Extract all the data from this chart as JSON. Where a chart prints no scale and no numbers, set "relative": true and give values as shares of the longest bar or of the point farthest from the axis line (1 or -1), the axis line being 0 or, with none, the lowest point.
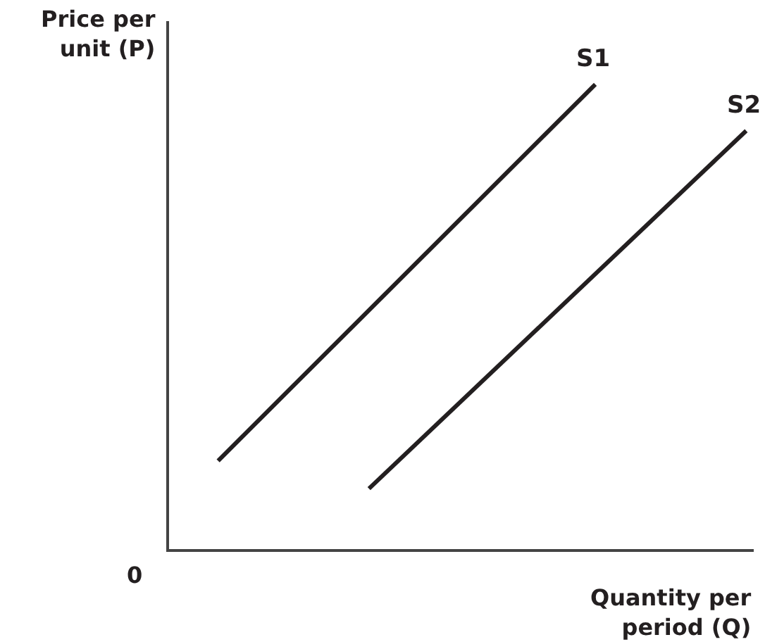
{
  "chart_data": {
    "type": "line",
    "relative": true,
    "xlabel": "Quantity per\nperiod (Q)",
    "ylabel": "Price per\nunit (P)",
    "annotations": [
      "0"
    ],
    "legend": false,
    "marker": "none",
    "line_style": "solid",
    "categories": [
      null,
      null,
      null,
      null,
      null,
      null,
      null,
      null,
      null,
      null,
      null,
      null,
      null,
      null,
      null
    ],
    "series": [
      {
        "name": "S1",
        "color": "#231f20",
        "values": [
          0.19,
          null,
          null,
          null,
          null,
          null,
          null,
          null,
          null,
          null,
          1.0,
          null,
          null,
          null,
          null
        ]
      },
      {
        "name": "S2",
        "color": "#231f20",
        "values": [
          null,
          null,
          null,
          null,
          0.13,
          null,
          null,
          null,
          null,
          null,
          null,
          null,
          null,
          null,
          0.9
        ]
      }
    ]
  }
}
